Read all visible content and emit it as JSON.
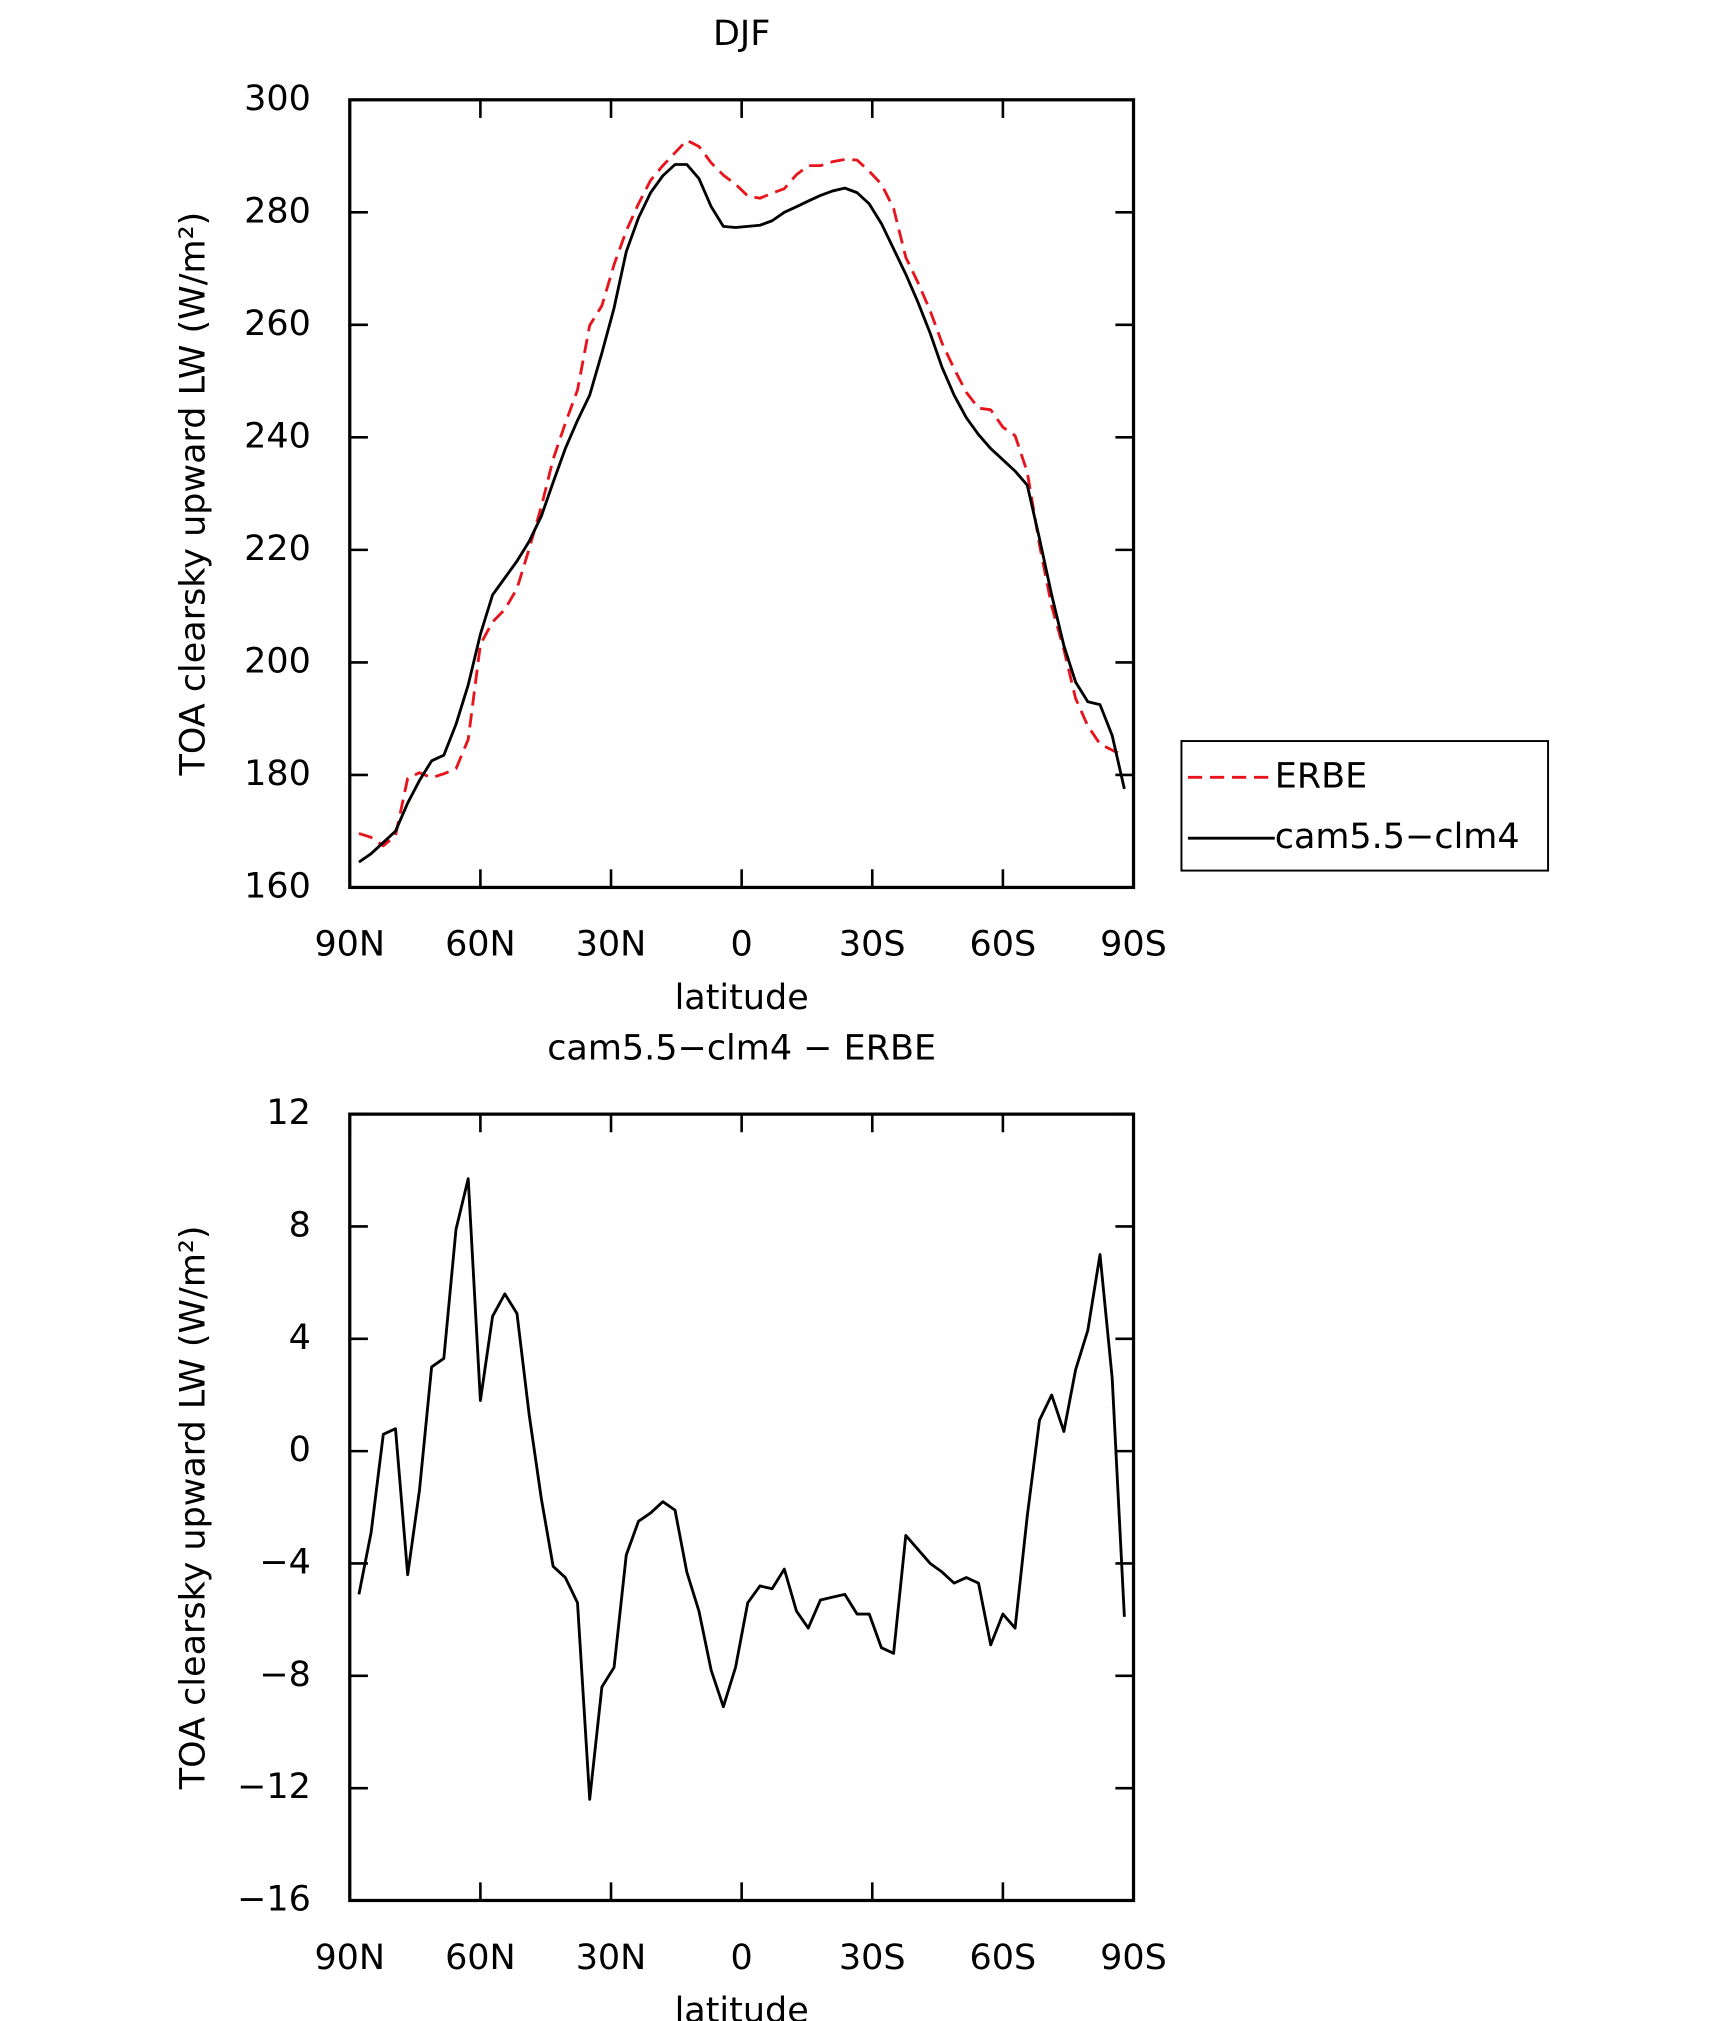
{
  "chart_data": [
    {
      "type": "line",
      "title": "DJF",
      "xlabel": "latitude",
      "ylabel": "TOA clearsky upward LW (W/m²)",
      "x": [
        87.9,
        85.1,
        82.3,
        79.5,
        76.7,
        74.0,
        71.2,
        68.4,
        65.6,
        62.8,
        60.0,
        57.2,
        54.4,
        51.6,
        48.8,
        46.0,
        43.3,
        40.5,
        37.7,
        34.9,
        32.1,
        29.3,
        26.5,
        23.7,
        20.9,
        18.1,
        15.3,
        12.6,
        9.8,
        7.0,
        4.2,
        1.4,
        -1.4,
        -4.2,
        -7.0,
        -9.8,
        -12.6,
        -15.3,
        -18.1,
        -20.9,
        -23.7,
        -26.5,
        -29.3,
        -32.1,
        -34.9,
        -37.7,
        -40.5,
        -43.3,
        -46.0,
        -48.8,
        -51.6,
        -54.4,
        -57.2,
        -60.0,
        -62.8,
        -65.6,
        -68.4,
        -71.2,
        -74.0,
        -76.7,
        -79.5,
        -82.3,
        -85.1,
        -87.9
      ],
      "series": [
        {
          "name": "ERBE",
          "color": "#e8141c",
          "dashed": true,
          "values": [
            169.6,
            168.9,
            167.4,
            169.2,
            179.4,
            180.4,
            179.5,
            180.2,
            181.1,
            186.3,
            203.2,
            207.2,
            209.4,
            213.1,
            220.2,
            227.7,
            236.1,
            242.5,
            248.4,
            259.9,
            263.4,
            270.7,
            276.7,
            281.5,
            285.7,
            288.3,
            290.6,
            292.8,
            291.7,
            288.8,
            286.6,
            285.0,
            282.9,
            282.5,
            283.4,
            284.2,
            286.7,
            288.3,
            288.3,
            289.0,
            289.4,
            289.3,
            287.3,
            285.0,
            280.7,
            272.0,
            267.5,
            262.5,
            256.8,
            252.2,
            248.0,
            245.2,
            244.9,
            241.8,
            240.3,
            233.8,
            220.9,
            210.0,
            202.3,
            193.6,
            188.7,
            185.5,
            184.4,
            183.4
          ]
        },
        {
          "name": "cam5.5−clm4",
          "color": "#000000",
          "dashed": false,
          "values": [
            164.5,
            166,
            168,
            170,
            175,
            179,
            182.5,
            183.5,
            189,
            196,
            205,
            212,
            215,
            218,
            221.5,
            226,
            232,
            238,
            243,
            247.5,
            255,
            263,
            273,
            279,
            283.5,
            286.5,
            288.5,
            288.5,
            286,
            281,
            277.5,
            277.3,
            277.5,
            277.7,
            278.5,
            280,
            281,
            282,
            283,
            283.8,
            284.3,
            283.5,
            281.5,
            278,
            273.5,
            269,
            264,
            258.5,
            252.5,
            247.5,
            243.5,
            240.5,
            238,
            236,
            234,
            231.5,
            222,
            212,
            203,
            196.5,
            193,
            192.5,
            187,
            177.5
          ]
        }
      ],
      "xlim": [
        90,
        -90
      ],
      "xticks": [
        {
          "value": 90,
          "label": "90N"
        },
        {
          "value": 60,
          "label": "60N"
        },
        {
          "value": 30,
          "label": "30N"
        },
        0,
        {
          "value": -30,
          "label": "30S"
        },
        {
          "value": -60,
          "label": "60S"
        },
        {
          "value": -90,
          "label": "90S"
        }
      ],
      "ylim": [
        160,
        300
      ],
      "yticks": [
        160,
        180,
        200,
        220,
        240,
        260,
        280,
        300
      ],
      "legend": "right"
    },
    {
      "type": "line",
      "title": "cam5.5−clm4 − ERBE",
      "xlabel": "latitude",
      "ylabel": "TOA clearsky upward LW (W/m²)",
      "x": [
        87.9,
        85.1,
        82.3,
        79.5,
        76.7,
        74.0,
        71.2,
        68.4,
        65.6,
        62.8,
        60.0,
        57.2,
        54.4,
        51.6,
        48.8,
        46.0,
        43.3,
        40.5,
        37.7,
        34.9,
        32.1,
        29.3,
        26.5,
        23.7,
        20.9,
        18.1,
        15.3,
        12.6,
        9.8,
        7.0,
        4.2,
        1.4,
        -1.4,
        -4.2,
        -7.0,
        -9.8,
        -12.6,
        -15.3,
        -18.1,
        -20.9,
        -23.7,
        -26.5,
        -29.3,
        -32.1,
        -34.9,
        -37.7,
        -40.5,
        -43.3,
        -46.0,
        -48.8,
        -51.6,
        -54.4,
        -57.2,
        -60.0,
        -62.8,
        -65.6,
        -68.4,
        -71.2,
        -74.0,
        -76.7,
        -79.5,
        -82.3,
        -85.1,
        -87.9
      ],
      "series": [
        {
          "color": "#000000",
          "dashed": false,
          "values": [
            -5.1,
            -2.9,
            0.6,
            0.8,
            -4.4,
            -1.4,
            3.0,
            3.3,
            7.9,
            9.7,
            1.8,
            4.8,
            5.6,
            4.9,
            1.3,
            -1.7,
            -4.1,
            -4.5,
            -5.4,
            -12.4,
            -8.4,
            -7.7,
            -3.7,
            -2.5,
            -2.2,
            -1.8,
            -2.1,
            -4.3,
            -5.7,
            -7.8,
            -9.1,
            -7.7,
            -5.4,
            -4.8,
            -4.9,
            -4.2,
            -5.7,
            -6.3,
            -5.3,
            -5.2,
            -5.1,
            -5.8,
            -5.8,
            -7.0,
            -7.2,
            -3.0,
            -3.5,
            -4.0,
            -4.3,
            -4.7,
            -4.5,
            -4.7,
            -6.9,
            -5.8,
            -6.3,
            -2.3,
            1.1,
            2.0,
            0.7,
            2.9,
            4.3,
            7.0,
            2.6,
            -5.9
          ]
        }
      ],
      "xlim": [
        90,
        -90
      ],
      "xticks": [
        {
          "value": 90,
          "label": "90N"
        },
        {
          "value": 60,
          "label": "60N"
        },
        {
          "value": 30,
          "label": "30N"
        },
        0,
        {
          "value": -30,
          "label": "30S"
        },
        {
          "value": -60,
          "label": "60S"
        },
        {
          "value": -90,
          "label": "90S"
        }
      ],
      "ylim": [
        -16,
        12
      ],
      "yticks": [
        {
          "value": -16,
          "label": "−16"
        },
        {
          "value": -12,
          "label": "−12"
        },
        {
          "value": -8,
          "label": "−8"
        },
        {
          "value": -4,
          "label": "−4"
        },
        0,
        4,
        8,
        12
      ]
    }
  ]
}
